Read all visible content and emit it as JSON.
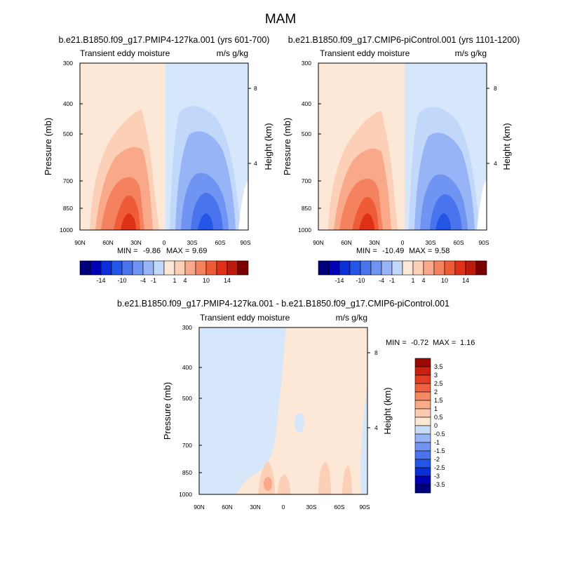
{
  "figure": {
    "title": "MAM"
  },
  "colors": {
    "neg": [
      "#00007a",
      "#0000b5",
      "#0a2fd8",
      "#2456e6",
      "#4a74ee",
      "#7094f2",
      "#97b5f6",
      "#c2d8fa"
    ],
    "pos": [
      "#fde8d8",
      "#fcd0b6",
      "#f9a98a",
      "#f5825f",
      "#ef5a37",
      "#df3018",
      "#bd1a0c",
      "#7a0000"
    ],
    "diff_neg": [
      "#00007a",
      "#0000b5",
      "#0a2fd8",
      "#2456e6",
      "#4a74ee",
      "#7094f2",
      "#97b5f6",
      "#c9ddfa"
    ],
    "diff_pos": [
      "#fde8d8",
      "#fbcab0",
      "#f8ac88",
      "#f58961",
      "#ef6140",
      "#e33d23",
      "#c8220f",
      "#9b0a02"
    ]
  },
  "chart_data": [
    {
      "id": "panel1",
      "type": "contour",
      "title": "b.e21.B1850.f09_g17.PMIP4-127ka.001 (yrs 601-700)",
      "left_label": "Transient eddy moisture",
      "right_label": "m/s g/kg",
      "ylabel": "Pressure (mb)",
      "ylabel_right": "Height (km)",
      "x_ticks": [
        "90N",
        "60N",
        "30N",
        "0",
        "30S",
        "60S",
        "90S"
      ],
      "y_ticks": [
        "300",
        "400",
        "500",
        "700",
        "850",
        "1000"
      ],
      "height_ticks": [
        "8",
        "4"
      ],
      "stats": {
        "min_label": "MIN =",
        "min": "-9.86",
        "max_label": "MAX =",
        "max": "9.69"
      },
      "colorbar_labels": [
        "-14",
        "-10",
        "-4",
        "-1",
        "1",
        "4",
        "10",
        "14"
      ]
    },
    {
      "id": "panel2",
      "type": "contour",
      "title": "b.e21.B1850.f09_g17.CMIP6-piControl.001 (yrs 1101-1200)",
      "left_label": "Transient eddy moisture",
      "right_label": "m/s g/kg",
      "ylabel": "Pressure (mb)",
      "ylabel_right": "Height (km)",
      "x_ticks": [
        "90N",
        "60N",
        "30N",
        "0",
        "30S",
        "60S",
        "90S"
      ],
      "y_ticks": [
        "300",
        "400",
        "500",
        "700",
        "850",
        "1000"
      ],
      "height_ticks": [
        "8",
        "4"
      ],
      "stats": {
        "min_label": "MIN =",
        "min": "-10.49",
        "max_label": "MAX =",
        "max": "9.58"
      },
      "colorbar_labels": [
        "-14",
        "-10",
        "-4",
        "-1",
        "1",
        "4",
        "10",
        "14"
      ]
    },
    {
      "id": "panel3",
      "type": "contour",
      "title": "b.e21.B1850.f09_g17.PMIP4-127ka.001 - b.e21.B1850.f09_g17.CMIP6-piControl.001",
      "left_label": "Transient eddy moisture",
      "right_label": "m/s g/kg",
      "ylabel": "Pressure (mb)",
      "ylabel_right": "Height (km)",
      "x_ticks": [
        "90N",
        "60N",
        "30N",
        "0",
        "30S",
        "60S",
        "90S"
      ],
      "y_ticks": [
        "300",
        "400",
        "500",
        "700",
        "850",
        "1000"
      ],
      "height_ticks": [
        "8",
        "4"
      ],
      "stats": {
        "min_label": "MIN =",
        "min": "-0.72",
        "max_label": "MAX =",
        "max": "1.16"
      },
      "colorbar_labels": [
        "3.5",
        "3",
        "2.5",
        "2",
        "1.5",
        "1",
        "0.5",
        "0",
        "-0.5",
        "-1",
        "-1.5",
        "-2",
        "-2.5",
        "-3",
        "-3.5"
      ]
    }
  ]
}
